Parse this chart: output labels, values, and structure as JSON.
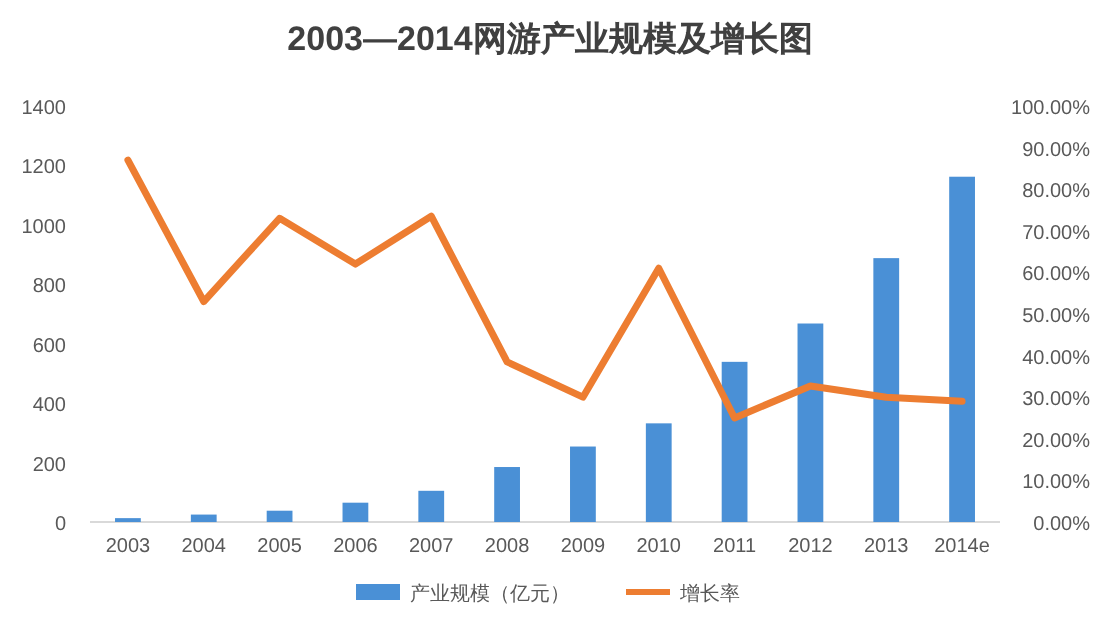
{
  "chart_data": {
    "type": "bar",
    "title": "2003—2014网游产业规模及增长图",
    "categories": [
      "2003",
      "2004",
      "2005",
      "2006",
      "2007",
      "2008",
      "2009",
      "2010",
      "2011",
      "2012",
      "2013",
      "2014e"
    ],
    "series": [
      {
        "name": "产业规模（亿元）",
        "color": "#4a90d6",
        "values": [
          13,
          25,
          38,
          65,
          105,
          185,
          254,
          332,
          539,
          668,
          888,
          1162
        ]
      },
      {
        "name": "增长率",
        "type": "line",
        "axis": "y2",
        "color": "#ed7d31",
        "values": [
          87,
          53,
          73,
          62,
          73.5,
          38.5,
          30,
          61,
          25,
          32.7,
          30,
          29
        ]
      }
    ],
    "ylim": [
      0,
      1400
    ],
    "yticks": [
      0,
      200,
      400,
      600,
      800,
      1000,
      1200,
      1400
    ],
    "y2lim": [
      0,
      100
    ],
    "y2ticks": [
      {
        "value": 0,
        "label": "0.00%"
      },
      {
        "value": 10,
        "label": "10.00%"
      },
      {
        "value": 20,
        "label": "20.00%"
      },
      {
        "value": 30,
        "label": "30.00%"
      },
      {
        "value": 40,
        "label": "40.00%"
      },
      {
        "value": 50,
        "label": "50.00%"
      },
      {
        "value": 60,
        "label": "60.00%"
      },
      {
        "value": 70,
        "label": "70.00%"
      },
      {
        "value": 80,
        "label": "80.00%"
      },
      {
        "value": 90,
        "label": "90.00%"
      },
      {
        "value": 100,
        "label": "100.00%"
      }
    ],
    "legend": "bottom"
  }
}
